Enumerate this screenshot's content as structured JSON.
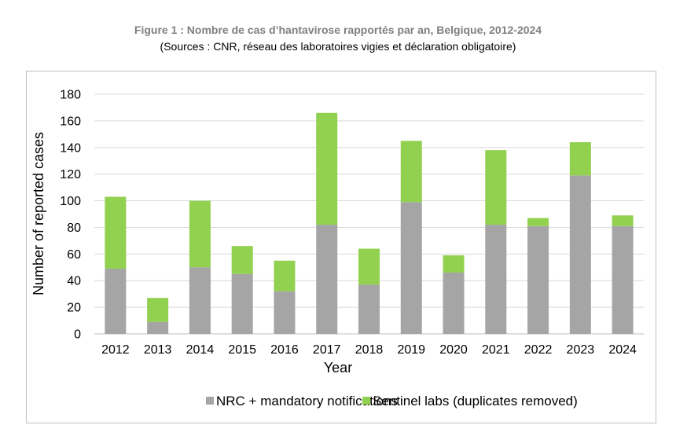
{
  "header": {
    "title": "Figure 1 : Nombre de cas d’hantavirose rapportés par an, Belgique, 2012-2024",
    "subtitle": "(Sources : CNR, réseau des laboratoires vigies et déclaration obligatoire)"
  },
  "chart_data": {
    "type": "bar",
    "stacked": true,
    "categories": [
      "2012",
      "2013",
      "2014",
      "2015",
      "2016",
      "2017",
      "2018",
      "2019",
      "2020",
      "2021",
      "2022",
      "2023",
      "2024"
    ],
    "series": [
      {
        "name": "NRC + mandatory notifications",
        "color": "#a5a5a5",
        "values": [
          49,
          9,
          50,
          45,
          32,
          82,
          37,
          99,
          46,
          82,
          81,
          119,
          81
        ]
      },
      {
        "name": "Sentinel labs (duplicates removed)",
        "color": "#92d050",
        "values": [
          54,
          18,
          50,
          21,
          23,
          84,
          27,
          46,
          13,
          56,
          6,
          25,
          8
        ]
      }
    ],
    "xlabel": "Year",
    "ylabel": "Number of reported cases",
    "ylim": [
      0,
      180
    ],
    "yticks": [
      0,
      20,
      40,
      60,
      80,
      100,
      120,
      140,
      160,
      180
    ],
    "grid": true,
    "legend_position": "bottom"
  }
}
